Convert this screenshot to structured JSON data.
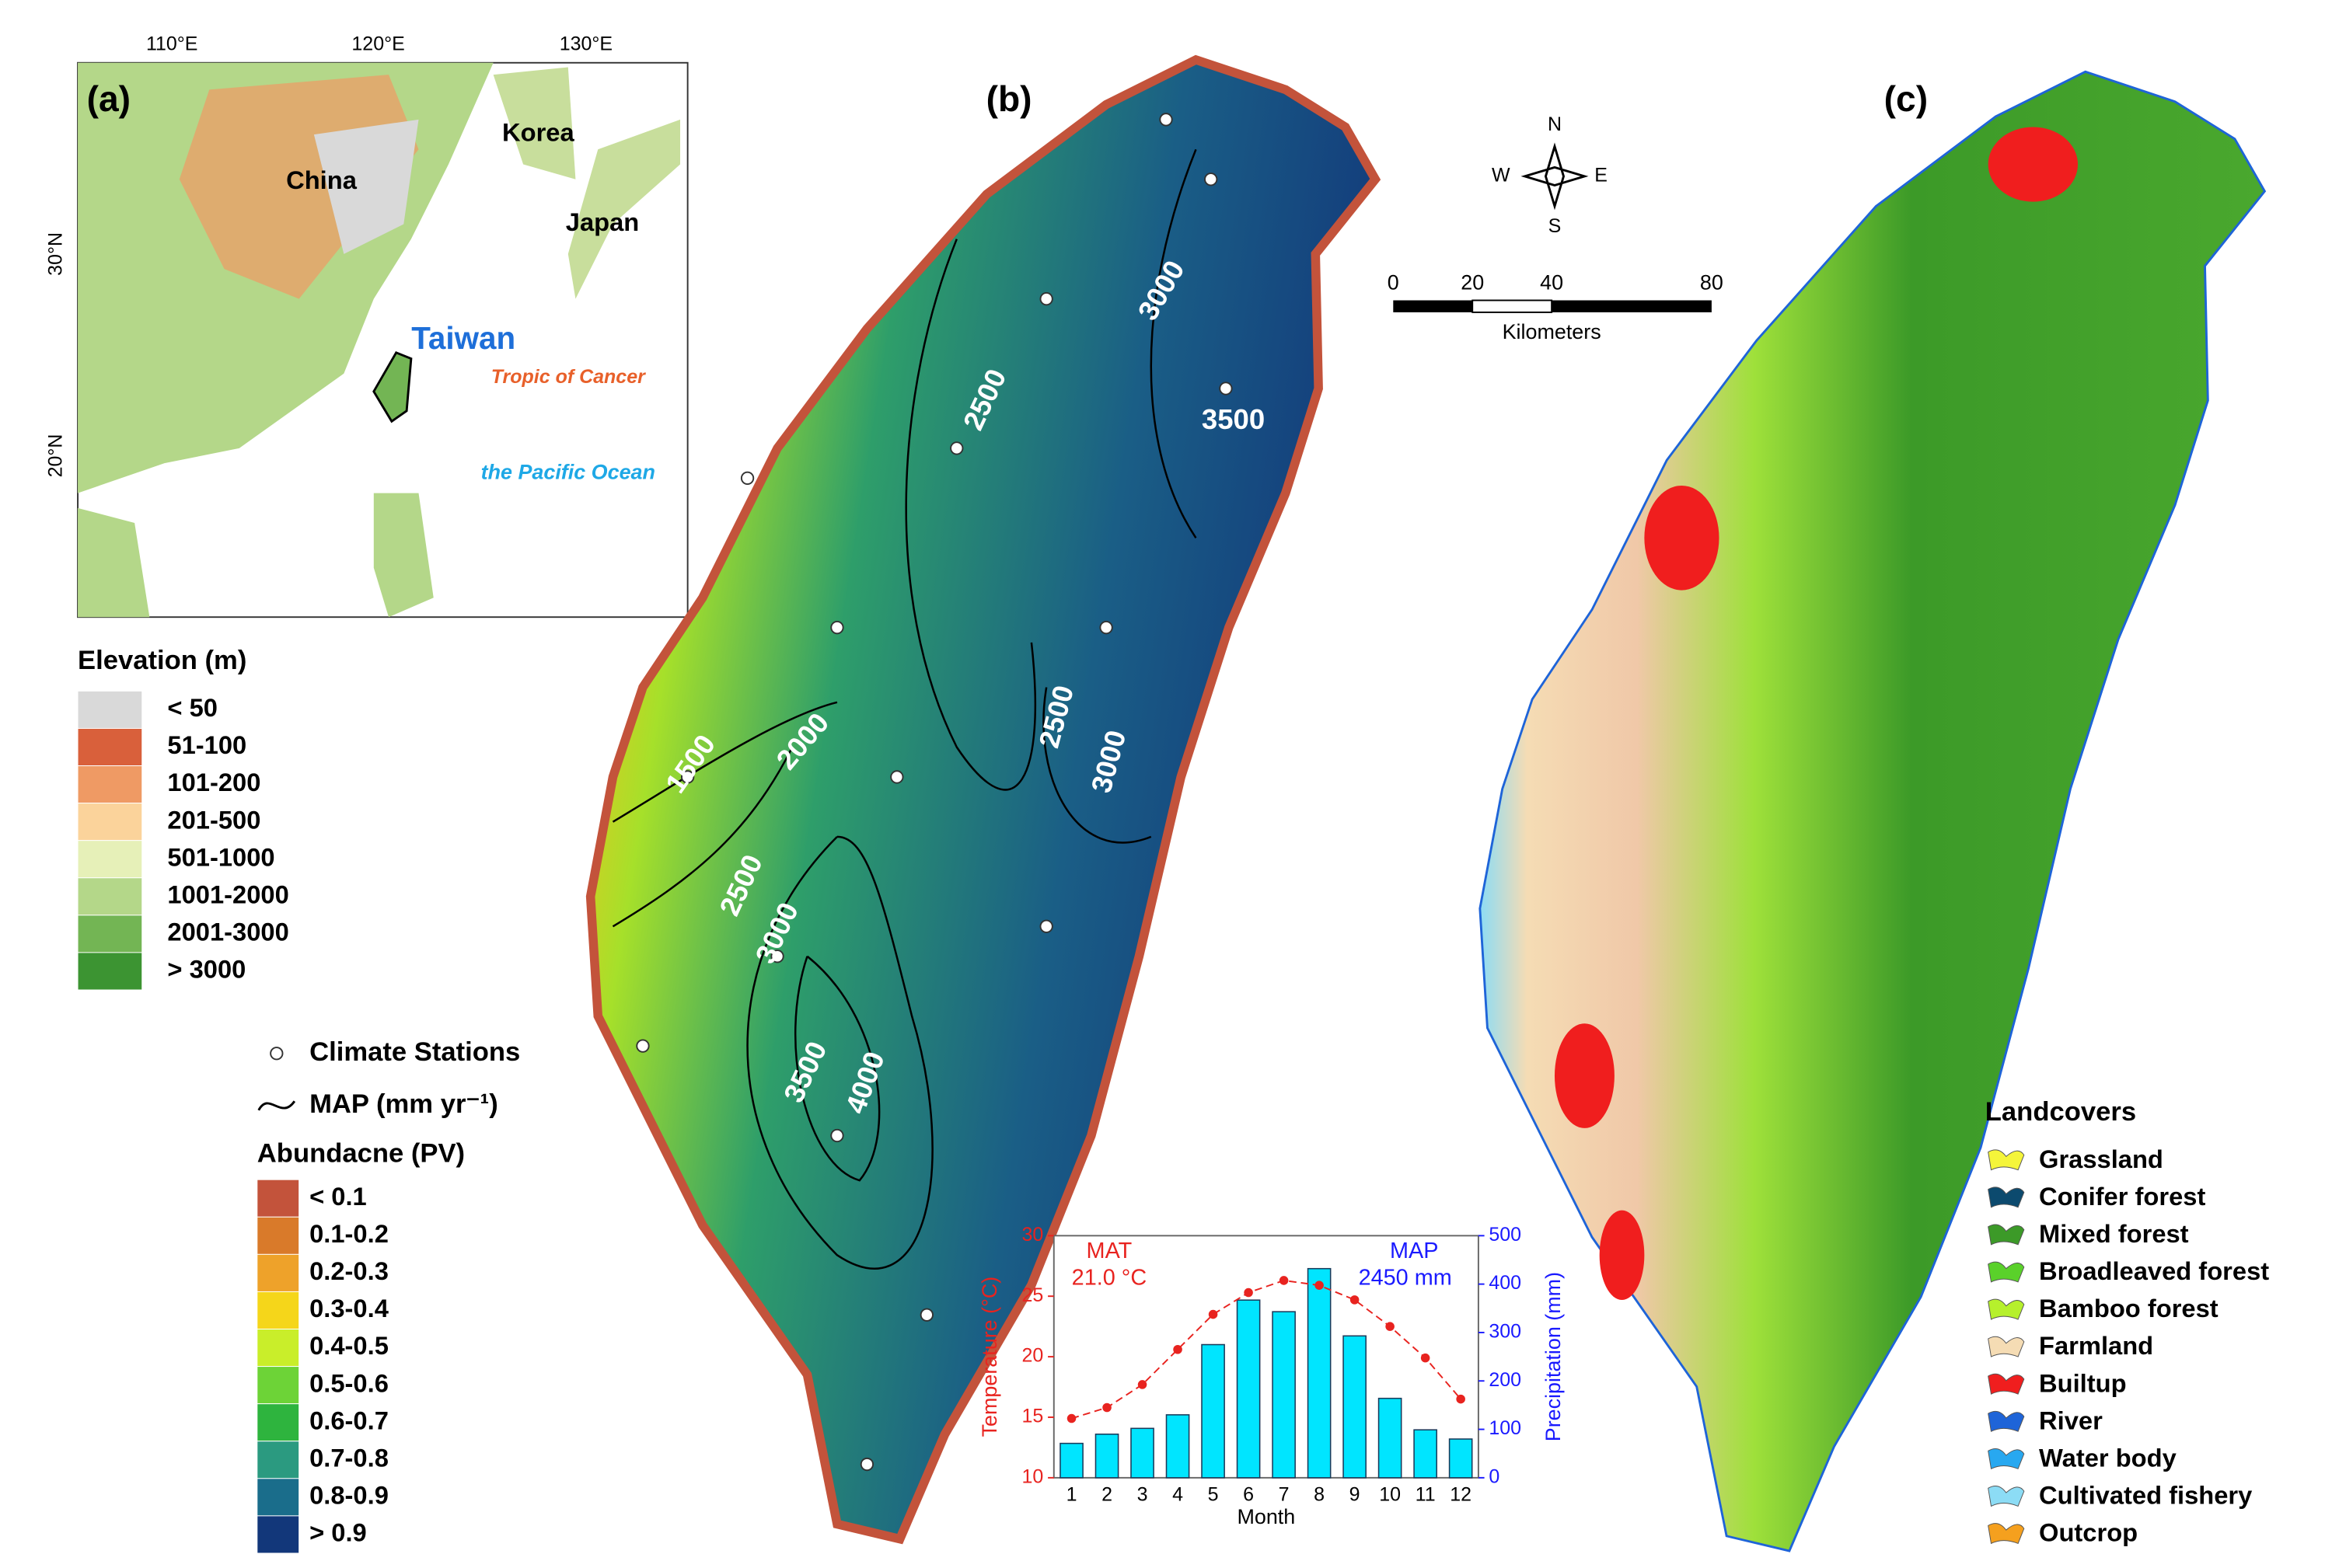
{
  "panel_a": {
    "label": "(a)",
    "lon_labels": [
      "110°E",
      "120°E",
      "130°E"
    ],
    "lat_labels": [
      "30°N",
      "20°N"
    ],
    "places": [
      "China",
      "Korea",
      "Japan",
      "Taiwan",
      "Tropic of Cancer",
      "the Pacific Ocean"
    ]
  },
  "elevation_legend": {
    "title": "Elevation (m)",
    "items": [
      {
        "label": "< 50",
        "color": "#d9d9d9"
      },
      {
        "label": "51-100",
        "color": "#d9603b"
      },
      {
        "label": "101-200",
        "color": "#ef9a64"
      },
      {
        "label": "201-500",
        "color": "#fbd39b"
      },
      {
        "label": "501-1000",
        "color": "#e6f0b8"
      },
      {
        "label": "1001-2000",
        "color": "#b4d789"
      },
      {
        "label": "2001-3000",
        "color": "#73b554"
      },
      {
        "label": "> 3000",
        "color": "#3c9432"
      }
    ]
  },
  "panel_b": {
    "label": "(b)",
    "contour_labels": [
      "3000",
      "3500",
      "2500",
      "2500",
      "3000",
      "2000",
      "1500",
      "2500",
      "3000",
      "3500",
      "4000"
    ],
    "compass": [
      "N",
      "S",
      "W",
      "E"
    ],
    "scale_labels": [
      "0",
      "20",
      "40",
      "80"
    ],
    "scale_unit": "Kilometers"
  },
  "stations_legend": {
    "stations": "Climate Stations",
    "map": "MAP (mm yr⁻¹)"
  },
  "abundance_legend": {
    "title": "Abundacne (PV)",
    "items": [
      {
        "label": "< 0.1",
        "color": "#c3533b"
      },
      {
        "label": "0.1-0.2",
        "color": "#d97a2a"
      },
      {
        "label": "0.2-0.3",
        "color": "#eea22a"
      },
      {
        "label": "0.3-0.4",
        "color": "#f5d61a"
      },
      {
        "label": "0.4-0.5",
        "color": "#c9ee2a"
      },
      {
        "label": "0.5-0.6",
        "color": "#6dd337"
      },
      {
        "label": "0.6-0.7",
        "color": "#2eb43e"
      },
      {
        "label": "0.7-0.8",
        "color": "#2b9a80"
      },
      {
        "label": "0.8-0.9",
        "color": "#1a6d8b"
      },
      {
        "label": "> 0.9",
        "color": "#12377a"
      }
    ]
  },
  "panel_c": {
    "label": "(c)"
  },
  "landcover_legend": {
    "title": "Landcovers",
    "items": [
      {
        "label": "Grassland",
        "color": "#f5f53a"
      },
      {
        "label": "Conifer forest",
        "color": "#0c4a6e"
      },
      {
        "label": "Mixed forest",
        "color": "#3c9a28"
      },
      {
        "label": "Broadleaved forest",
        "color": "#5ad12a"
      },
      {
        "label": "Bamboo forest",
        "color": "#b6f02c"
      },
      {
        "label": "Farmland",
        "color": "#f5dcb4"
      },
      {
        "label": "Builtup",
        "color": "#f01e1e"
      },
      {
        "label": "River",
        "color": "#1e64d8"
      },
      {
        "label": "Water body",
        "color": "#28a8f0"
      },
      {
        "label": "Cultivated fishery",
        "color": "#8cdcf5"
      },
      {
        "label": "Outcrop",
        "color": "#f5a01e"
      }
    ]
  },
  "chart_data": {
    "type": "bar-line",
    "xlabel": "Month",
    "ylabel": "Temperature (°C)",
    "y2label": "Precipitation (mm)",
    "categories": [
      "1",
      "2",
      "3",
      "4",
      "5",
      "6",
      "7",
      "8",
      "9",
      "10",
      "11",
      "12"
    ],
    "ylim": [
      10,
      30
    ],
    "yticks": [
      10,
      15,
      20,
      25,
      30
    ],
    "y2lim": [
      0,
      500
    ],
    "y2ticks": [
      0,
      100,
      200,
      300,
      400,
      500
    ],
    "series": [
      {
        "type": "line",
        "color": "#e8231f",
        "values": [
          14.9,
          15.8,
          17.7,
          20.6,
          23.5,
          25.3,
          26.3,
          25.9,
          24.7,
          22.5,
          19.9,
          16.5
        ]
      },
      {
        "type": "bar",
        "axis": "y2",
        "color": "#00e5ff",
        "values": [
          71,
          90,
          102,
          130,
          275,
          367,
          343,
          432,
          293,
          164,
          99,
          80
        ]
      }
    ],
    "annotations": [
      {
        "text": "MAT",
        "color": "#e8231f"
      },
      {
        "text": "21.0 °C",
        "color": "#e8231f"
      },
      {
        "text": "MAP",
        "color": "#1a1aff"
      },
      {
        "text": "2450 mm",
        "color": "#1a1aff"
      }
    ],
    "ycolor": "#e8231f",
    "y2color": "#1a1aff"
  }
}
